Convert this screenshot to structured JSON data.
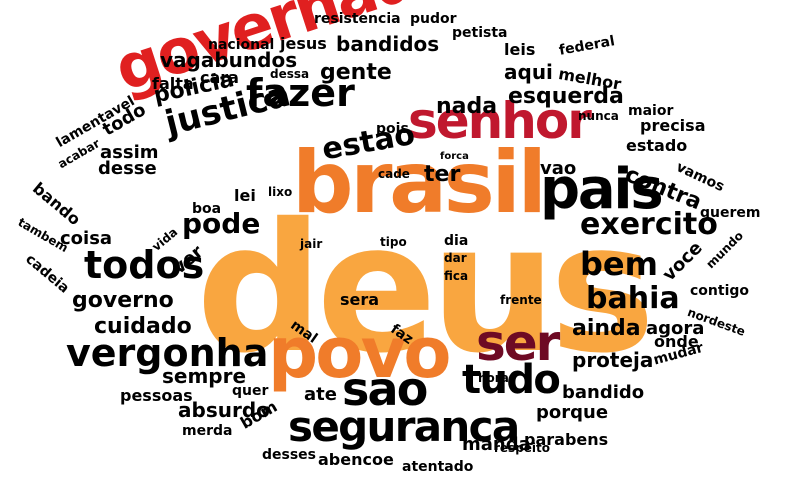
{
  "colors": {
    "orange": "#F9A640",
    "mid_orange": "#F07C2A",
    "red": "#E02020",
    "crimson": "#C0182E",
    "maroon": "#6E0A24",
    "black": "#000000"
  },
  "words": [
    {
      "text": "deus",
      "color": "orange"
    },
    {
      "text": "brasil",
      "color": "mid_orange"
    },
    {
      "text": "governador",
      "color": "red"
    },
    {
      "text": "povo",
      "color": "mid_orange"
    },
    {
      "text": "senhor",
      "color": "crimson"
    },
    {
      "text": "pais",
      "color": "black"
    },
    {
      "text": "ser",
      "color": "maroon"
    },
    {
      "text": "sao",
      "color": "black"
    },
    {
      "text": "seguranca",
      "color": "black"
    },
    {
      "text": "vergonha",
      "color": "black"
    },
    {
      "text": "tudo",
      "color": "black"
    },
    {
      "text": "todos",
      "color": "black"
    },
    {
      "text": "fazer",
      "color": "black"
    },
    {
      "text": "justica",
      "color": "black"
    },
    {
      "text": "exercito",
      "color": "black"
    },
    {
      "text": "bem",
      "color": "black"
    },
    {
      "text": "bahia",
      "color": "black"
    },
    {
      "text": "estao",
      "color": "black"
    },
    {
      "text": "pode",
      "color": "black"
    },
    {
      "text": "governo",
      "color": "black"
    },
    {
      "text": "cuidado",
      "color": "black"
    },
    {
      "text": "sempre",
      "color": "black"
    },
    {
      "text": "ainda",
      "color": "black"
    },
    {
      "text": "proteja",
      "color": "black"
    },
    {
      "text": "absurdo",
      "color": "black"
    },
    {
      "text": "nada",
      "color": "black"
    },
    {
      "text": "esquerda",
      "color": "black"
    },
    {
      "text": "contra",
      "color": "black"
    },
    {
      "text": "gente",
      "color": "black"
    },
    {
      "text": "vagabundos",
      "color": "black"
    },
    {
      "text": "bandidos",
      "color": "black"
    },
    {
      "text": "policia",
      "color": "black"
    },
    {
      "text": "aqui",
      "color": "black"
    },
    {
      "text": "vao",
      "color": "black"
    },
    {
      "text": "ter",
      "color": "black"
    },
    {
      "text": "bandido",
      "color": "black"
    },
    {
      "text": "porque",
      "color": "black"
    },
    {
      "text": "manda",
      "color": "black"
    },
    {
      "text": "desse",
      "color": "black"
    },
    {
      "text": "assim",
      "color": "black"
    },
    {
      "text": "todo",
      "color": "black"
    },
    {
      "text": "coisa",
      "color": "black"
    },
    {
      "text": "ver",
      "color": "black"
    },
    {
      "text": "agora",
      "color": "black"
    },
    {
      "text": "voce",
      "color": "black"
    },
    {
      "text": "onde",
      "color": "black"
    },
    {
      "text": "estado",
      "color": "black"
    },
    {
      "text": "precisa",
      "color": "black"
    },
    {
      "text": "melhor",
      "color": "black"
    },
    {
      "text": "parabens",
      "color": "black"
    },
    {
      "text": "ate",
      "color": "black"
    },
    {
      "text": "pessoas",
      "color": "black"
    },
    {
      "text": "quer",
      "color": "black"
    },
    {
      "text": "bom",
      "color": "black"
    },
    {
      "text": "desses",
      "color": "black"
    },
    {
      "text": "abencoe",
      "color": "black"
    },
    {
      "text": "atentado",
      "color": "black"
    },
    {
      "text": "merda",
      "color": "black"
    },
    {
      "text": "cara",
      "color": "black"
    },
    {
      "text": "falta",
      "color": "black"
    },
    {
      "text": "jesus",
      "color": "black"
    },
    {
      "text": "nacional",
      "color": "black"
    },
    {
      "text": "resistencia",
      "color": "black"
    },
    {
      "text": "pudor",
      "color": "black"
    },
    {
      "text": "petista",
      "color": "black"
    },
    {
      "text": "leis",
      "color": "black"
    },
    {
      "text": "federal",
      "color": "black"
    },
    {
      "text": "maior",
      "color": "black"
    },
    {
      "text": "nunca",
      "color": "black"
    },
    {
      "text": "vamos",
      "color": "black"
    },
    {
      "text": "querem",
      "color": "black"
    },
    {
      "text": "mundo",
      "color": "black"
    },
    {
      "text": "contigo",
      "color": "black"
    },
    {
      "text": "nordeste",
      "color": "black"
    },
    {
      "text": "mudar",
      "color": "black"
    },
    {
      "text": "lamentavel",
      "color": "black"
    },
    {
      "text": "acabar",
      "color": "black"
    },
    {
      "text": "bando",
      "color": "black"
    },
    {
      "text": "tambem",
      "color": "black"
    },
    {
      "text": "cadeia",
      "color": "black"
    },
    {
      "text": "vida",
      "color": "black"
    },
    {
      "text": "boa",
      "color": "black"
    },
    {
      "text": "lei",
      "color": "black"
    },
    {
      "text": "lixo",
      "color": "black"
    },
    {
      "text": "cade",
      "color": "black"
    },
    {
      "text": "forca",
      "color": "black"
    },
    {
      "text": "pois",
      "color": "black"
    },
    {
      "text": "dessa",
      "color": "black"
    },
    {
      "text": "jair",
      "color": "black"
    },
    {
      "text": "tipo",
      "color": "black"
    },
    {
      "text": "dia",
      "color": "black"
    },
    {
      "text": "dar",
      "color": "black"
    },
    {
      "text": "fica",
      "color": "black"
    },
    {
      "text": "frente",
      "color": "black"
    },
    {
      "text": "sera",
      "color": "black"
    },
    {
      "text": "mal",
      "color": "black"
    },
    {
      "text": "faz",
      "color": "black"
    },
    {
      "text": "hora",
      "color": "black"
    },
    {
      "text": "respeito",
      "color": "black"
    }
  ]
}
